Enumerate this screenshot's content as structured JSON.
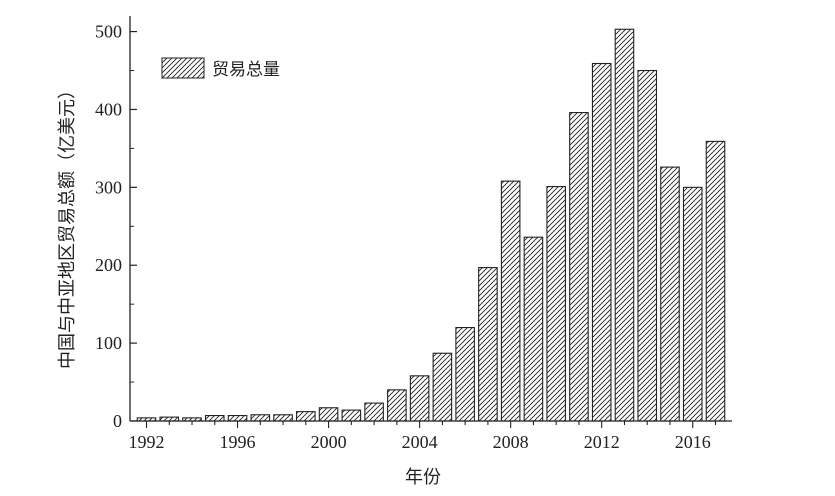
{
  "chart_data": {
    "type": "bar",
    "title": "",
    "xlabel": "年份",
    "ylabel": "中国与中亚地区贸易总额（亿美元）",
    "ylim": [
      0,
      520
    ],
    "yticks": [
      0,
      100,
      200,
      300,
      400,
      500
    ],
    "xtick_labels": [
      "1992",
      "1996",
      "2000",
      "2004",
      "2008",
      "2012",
      "2016"
    ],
    "legend_position": "top-left",
    "grid": false,
    "series": [
      {
        "name": "贸易总量",
        "fill": "diagonal-hatch",
        "color": "#222222",
        "categories": [
          "1992",
          "1993",
          "1994",
          "1995",
          "1996",
          "1997",
          "1998",
          "1999",
          "2000",
          "2001",
          "2002",
          "2003",
          "2004",
          "2005",
          "2006",
          "2007",
          "2008",
          "2009",
          "2010",
          "2011",
          "2012",
          "2013",
          "2014",
          "2015",
          "2016",
          "2017"
        ],
        "values": [
          4,
          5,
          4,
          7,
          7,
          8,
          8,
          12,
          17,
          14,
          23,
          40,
          58,
          87,
          120,
          197,
          308,
          236,
          301,
          396,
          459,
          503,
          450,
          326,
          300,
          359
        ]
      }
    ]
  }
}
